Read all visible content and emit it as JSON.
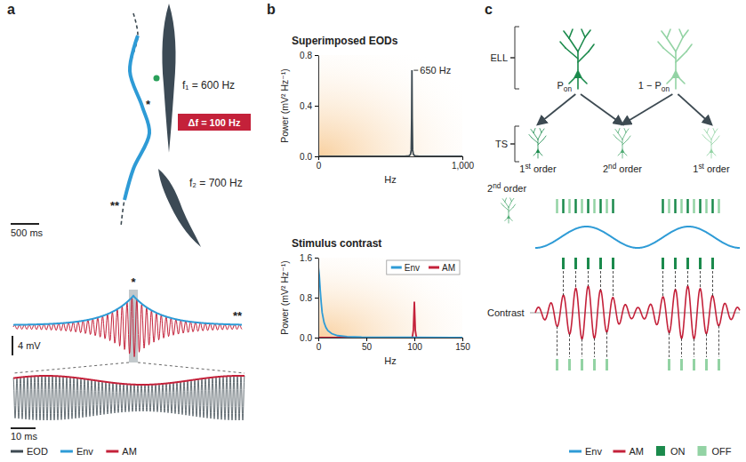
{
  "panel_a": {
    "letter": "a",
    "fish_1": "f₁ = 600 Hz",
    "fish_2": "f₂ = 700 Hz",
    "beat": "Δf = 100 Hz",
    "marker_near": "*",
    "marker_far": "**",
    "time_bar_long": "500 ms",
    "voltage_bar": "4 mV",
    "time_bar_short": "10 ms",
    "legend": [
      {
        "label": "EOD",
        "color": "#3d4a52"
      },
      {
        "label": "Env",
        "color": "#2e9bd6"
      },
      {
        "label": "AM",
        "color": "#c4213a"
      }
    ]
  },
  "panel_b": {
    "letter": "b"
  },
  "chart_data": [
    {
      "type": "line",
      "title": "Superimposed EODs",
      "x_label": "Hz",
      "y_label": "Power (mV² Hz⁻¹)",
      "xlim": [
        0,
        1000
      ],
      "xticks": [
        0,
        {
          "value": 1000,
          "label": "1,000"
        }
      ],
      "ylim": [
        0,
        0.8
      ],
      "yticks": [
        {
          "value": 0,
          "label": "0.0"
        },
        {
          "value": 0.4,
          "label": "0.4"
        },
        {
          "value": 0.8,
          "label": "0.8"
        }
      ],
      "annotations": [
        {
          "text": "650 Hz",
          "x": 650,
          "y": 0.68
        }
      ],
      "series": [
        {
          "color": "#3d4a52",
          "x": [
            0,
            600,
            630,
            640,
            645,
            648,
            650,
            652,
            655,
            660,
            670,
            700,
            1000
          ],
          "values": [
            0,
            0,
            0.005,
            0.015,
            0.05,
            0.3,
            0.68,
            0.3,
            0.05,
            0.015,
            0.005,
            0,
            0
          ]
        }
      ]
    },
    {
      "type": "line",
      "title": "Stimulus contrast",
      "x_label": "Hz",
      "y_label": "Power (mV² Hz⁻¹)",
      "xlim": [
        0,
        150
      ],
      "xticks": [
        0,
        50,
        100,
        150
      ],
      "ylim": [
        0,
        1.6
      ],
      "yticks": [
        {
          "value": 0,
          "label": "0.0"
        },
        {
          "value": 0.8,
          "label": "0.8"
        },
        {
          "value": 1.6,
          "label": "1.6"
        }
      ],
      "legend": "top-right",
      "series": [
        {
          "name": "AM",
          "color": "#c4213a",
          "x": [
            0,
            97,
            98,
            99,
            100,
            101,
            102,
            103,
            150
          ],
          "values": [
            0,
            0,
            0.02,
            0.15,
            0.72,
            0.15,
            0.02,
            0,
            0
          ]
        },
        {
          "name": "Env",
          "color": "#2e9bd6",
          "x": [
            0,
            1,
            2,
            3,
            4,
            6,
            8,
            10,
            14,
            20,
            30,
            45,
            150
          ],
          "values": [
            1.42,
            1.25,
            0.95,
            0.7,
            0.5,
            0.3,
            0.2,
            0.14,
            0.08,
            0.04,
            0.02,
            0.01,
            0
          ]
        }
      ]
    }
  ],
  "panel_c": {
    "letter": "c",
    "ell": "ELL",
    "ts": "TS",
    "on_cell": {
      "main": "P",
      "sub": "on"
    },
    "off_cell": {
      "main": "1 − P",
      "sub": "on"
    },
    "ts_cells": [
      {
        "main": "1",
        "sup": "st",
        "rest": " order"
      },
      {
        "main": "2",
        "sup": "nd",
        "rest": " order"
      },
      {
        "main": "1",
        "sup": "st",
        "rest": " order"
      }
    ],
    "raster_cell": {
      "main": "2",
      "sup": "nd",
      "rest": " order"
    },
    "contrast": "Contrast",
    "legend": [
      {
        "label": "Env",
        "color": "#2e9bd6"
      },
      {
        "label": "AM",
        "color": "#c4213a"
      },
      {
        "label": "ON",
        "color": "#1b8a4c"
      },
      {
        "label": "OFF",
        "color": "#93d3a4"
      }
    ]
  }
}
